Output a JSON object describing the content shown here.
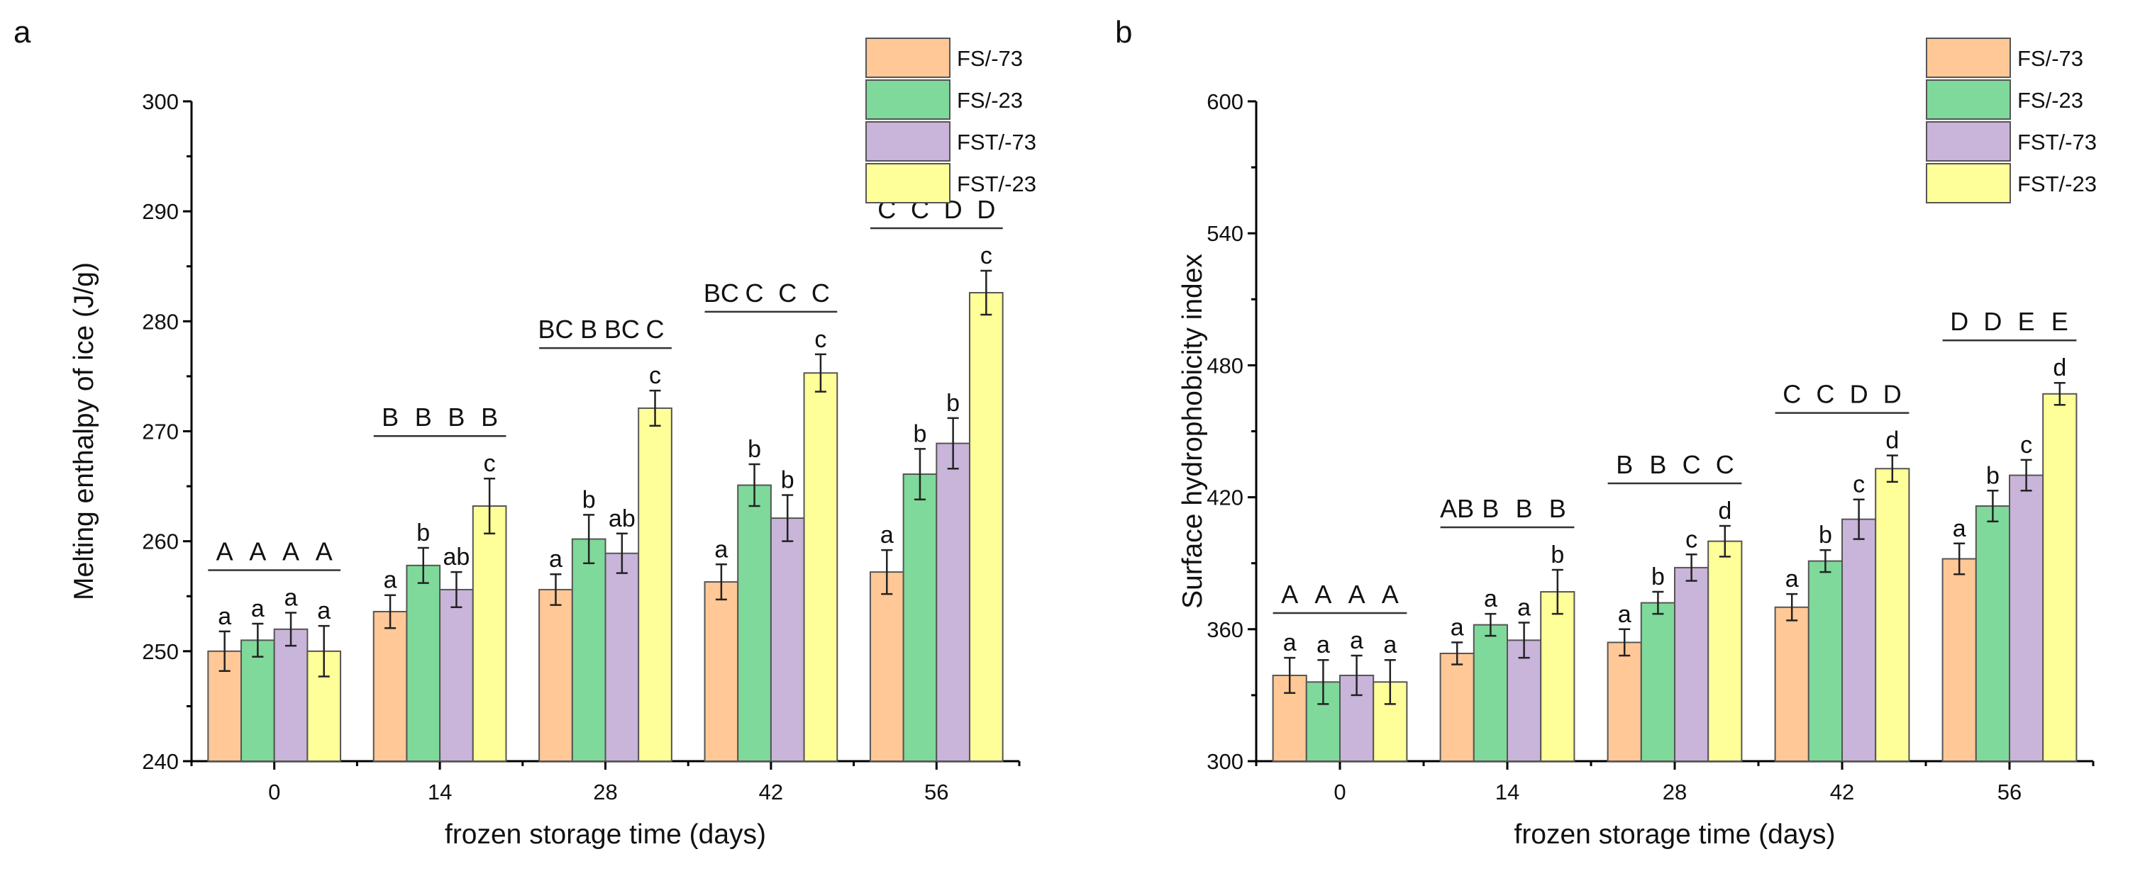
{
  "legend": [
    "FS/-73",
    "FS/-23",
    "FST/-73",
    "FST/-23"
  ],
  "colors": [
    "#FFC896",
    "#7FD99A",
    "#C9B4DA",
    "#FFFF99"
  ],
  "chart_data": [
    {
      "type": "bar",
      "panel_label": "a",
      "title": "",
      "xlabel": "frozen storage time (days)",
      "ylabel": "Melting enthalpy of ice (J/g)",
      "categories": [
        "0",
        "14",
        "28",
        "42",
        "56"
      ],
      "ylim": [
        240,
        300
      ],
      "yticks": [
        240,
        250,
        260,
        270,
        280,
        290,
        300
      ],
      "legend_position": "top-right",
      "series": [
        {
          "name": "FS/-73",
          "values": [
            250.0,
            253.6,
            255.6,
            256.3,
            257.2
          ],
          "errors": [
            1.8,
            1.5,
            1.4,
            1.6,
            2.0
          ],
          "letters": [
            "a",
            "a",
            "a",
            "a",
            "a"
          ]
        },
        {
          "name": "FS/-23",
          "values": [
            251.0,
            257.8,
            260.2,
            265.1,
            266.1
          ],
          "errors": [
            1.5,
            1.6,
            2.2,
            1.9,
            2.3
          ],
          "letters": [
            "a",
            "b",
            "b",
            "b",
            "b"
          ]
        },
        {
          "name": "FST/-73",
          "values": [
            252.0,
            255.6,
            258.9,
            262.1,
            268.9
          ],
          "errors": [
            1.5,
            1.6,
            1.8,
            2.1,
            2.3
          ],
          "letters": [
            "a",
            "ab",
            "ab",
            "b",
            "b"
          ]
        },
        {
          "name": "FST/-23",
          "values": [
            250.0,
            263.2,
            272.1,
            275.3,
            282.6
          ],
          "errors": [
            2.3,
            2.5,
            1.6,
            1.7,
            2.0
          ],
          "letters": [
            "a",
            "c",
            "c",
            "c",
            "c"
          ]
        }
      ],
      "group_letters": [
        [
          "A",
          "A",
          "A",
          "A"
        ],
        [
          "B",
          "B",
          "B",
          "B"
        ],
        [
          "BC",
          "B",
          "BC",
          "C"
        ],
        [
          "BC",
          "C",
          "C",
          "C"
        ],
        [
          "C",
          "C",
          "D",
          "D"
        ]
      ]
    },
    {
      "type": "bar",
      "panel_label": "b",
      "title": "",
      "xlabel": "frozen storage time (days)",
      "ylabel": "Surface hydrophobicity index",
      "categories": [
        "0",
        "14",
        "28",
        "42",
        "56"
      ],
      "ylim": [
        300,
        600
      ],
      "yticks": [
        300,
        360,
        420,
        480,
        540,
        600
      ],
      "legend_position": "top-right",
      "series": [
        {
          "name": "FS/-73",
          "values": [
            339,
            349,
            354,
            370,
            392
          ],
          "errors": [
            8,
            5,
            6,
            6,
            7
          ],
          "letters": [
            "a",
            "a",
            "a",
            "a",
            "a"
          ]
        },
        {
          "name": "FS/-23",
          "values": [
            336,
            362,
            372,
            391,
            416
          ],
          "errors": [
            10,
            5,
            5,
            5,
            7
          ],
          "letters": [
            "a",
            "a",
            "b",
            "b",
            "b"
          ]
        },
        {
          "name": "FST/-73",
          "values": [
            339,
            355,
            388,
            410,
            430
          ],
          "errors": [
            9,
            8,
            6,
            9,
            7
          ],
          "letters": [
            "a",
            "a",
            "c",
            "c",
            "c"
          ]
        },
        {
          "name": "FST/-23",
          "values": [
            336,
            377,
            400,
            433,
            467
          ],
          "errors": [
            10,
            10,
            7,
            6,
            5
          ],
          "letters": [
            "a",
            "b",
            "d",
            "d",
            "d"
          ]
        }
      ],
      "group_letters": [
        [
          "A",
          "A",
          "A",
          "A"
        ],
        [
          "AB",
          "B",
          "B",
          "B"
        ],
        [
          "B",
          "B",
          "C",
          "C"
        ],
        [
          "C",
          "C",
          "D",
          "D"
        ],
        [
          "D",
          "D",
          "E",
          "E"
        ]
      ]
    }
  ]
}
